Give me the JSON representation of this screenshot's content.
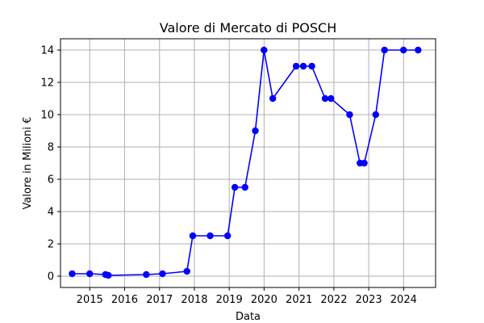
{
  "chart_data": {
    "type": "line",
    "title": "Valore di Mercato di POSCH",
    "xlabel": "Data",
    "ylabel": "Valore in Milioni €",
    "xlim": [
      "2014-03-01",
      "2024-12-01"
    ],
    "ylim": [
      -0.7,
      14.7
    ],
    "x_ticks": [
      "2015",
      "2016",
      "2017",
      "2018",
      "2019",
      "2020",
      "2021",
      "2022",
      "2023",
      "2024"
    ],
    "y_ticks": [
      0,
      2,
      4,
      6,
      8,
      10,
      12,
      14
    ],
    "grid": true,
    "series": [
      {
        "color": "#0000ff",
        "marker": "circle",
        "points": [
          {
            "x": "2014-07-01",
            "y": 0.15
          },
          {
            "x": "2015-01-01",
            "y": 0.15
          },
          {
            "x": "2015-06-15",
            "y": 0.1
          },
          {
            "x": "2015-07-15",
            "y": 0.05
          },
          {
            "x": "2016-08-15",
            "y": 0.1
          },
          {
            "x": "2017-02-01",
            "y": 0.15
          },
          {
            "x": "2017-10-15",
            "y": 0.3
          },
          {
            "x": "2017-12-15",
            "y": 2.5
          },
          {
            "x": "2018-06-15",
            "y": 2.5
          },
          {
            "x": "2018-12-15",
            "y": 2.5
          },
          {
            "x": "2019-03-01",
            "y": 5.5
          },
          {
            "x": "2019-06-15",
            "y": 5.5
          },
          {
            "x": "2019-10-01",
            "y": 9
          },
          {
            "x": "2019-12-31",
            "y": 14
          },
          {
            "x": "2020-04-01",
            "y": 11
          },
          {
            "x": "2020-12-01",
            "y": 13
          },
          {
            "x": "2021-02-15",
            "y": 13
          },
          {
            "x": "2021-05-15",
            "y": 13
          },
          {
            "x": "2021-10-01",
            "y": 11
          },
          {
            "x": "2021-12-01",
            "y": 11
          },
          {
            "x": "2022-06-15",
            "y": 10
          },
          {
            "x": "2022-10-01",
            "y": 7
          },
          {
            "x": "2022-11-15",
            "y": 7
          },
          {
            "x": "2023-03-15",
            "y": 10
          },
          {
            "x": "2023-06-15",
            "y": 14
          },
          {
            "x": "2023-12-31",
            "y": 14
          },
          {
            "x": "2024-06-01",
            "y": 14
          }
        ]
      }
    ]
  }
}
